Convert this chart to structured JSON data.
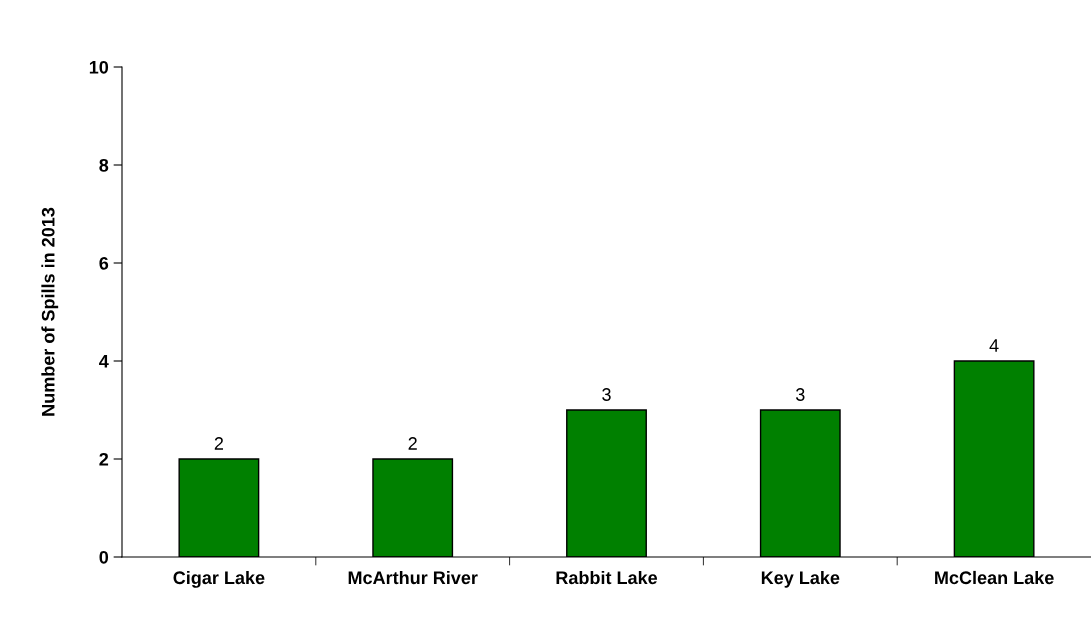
{
  "chart_data": {
    "type": "bar",
    "ylabel": "Number of Spills in 2013",
    "categories": [
      "Cigar Lake",
      "McArthur River",
      "Rabbit Lake",
      "Key Lake",
      "McClean Lake"
    ],
    "values": [
      2,
      2,
      3,
      3,
      4
    ],
    "color": "#008000",
    "ylim": [
      0,
      10
    ],
    "yticks": [
      0,
      2,
      4,
      6,
      8,
      10
    ],
    "grid": false,
    "legend": false,
    "data_labels": true
  }
}
